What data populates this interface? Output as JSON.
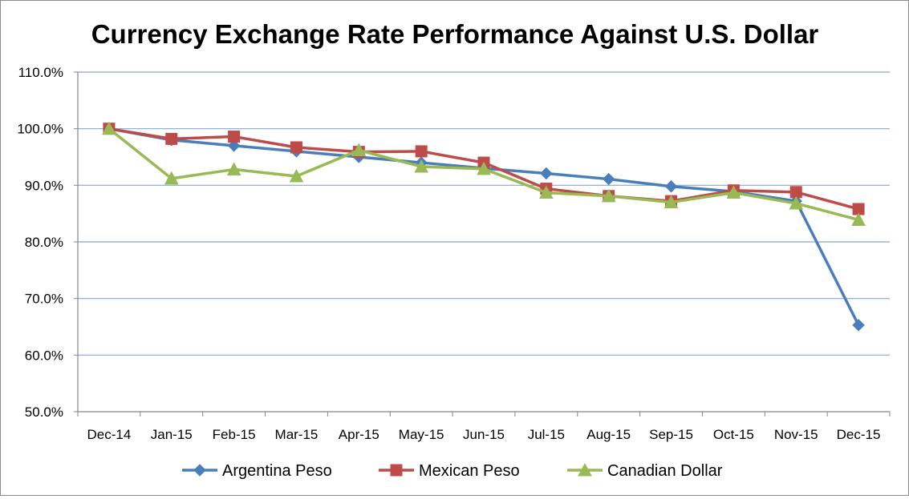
{
  "chart_data": {
    "type": "line",
    "title": "Currency Exchange Rate Performance Against U.S. Dollar",
    "xlabel": "",
    "ylabel": "",
    "categories": [
      "Dec-14",
      "Jan-15",
      "Feb-15",
      "Mar-15",
      "Apr-15",
      "May-15",
      "Jun-15",
      "Jul-15",
      "Aug-15",
      "Sep-15",
      "Oct-15",
      "Nov-15",
      "Dec-15"
    ],
    "ylim": [
      50,
      110
    ],
    "yticks": [
      50,
      60,
      70,
      80,
      90,
      100,
      110
    ],
    "ytick_labels": [
      "50.0%",
      "60.0%",
      "70.0%",
      "80.0%",
      "90.0%",
      "100.0%",
      "110.0%"
    ],
    "grid": true,
    "legend_position": "bottom",
    "series": [
      {
        "name": "Argentina Peso",
        "color": "#4a7ebb",
        "marker": "diamond",
        "values": [
          100.0,
          98.0,
          97.0,
          96.0,
          95.0,
          94.0,
          93.0,
          92.1,
          91.1,
          89.8,
          88.9,
          87.2,
          65.3
        ]
      },
      {
        "name": "Mexican Peso",
        "color": "#be4b48",
        "marker": "square",
        "values": [
          100.0,
          98.2,
          98.6,
          96.7,
          95.9,
          96.0,
          94.0,
          89.4,
          88.1,
          87.2,
          89.1,
          88.8,
          85.8
        ]
      },
      {
        "name": "Canadian Dollar",
        "color": "#98b954",
        "marker": "triangle",
        "values": [
          100.0,
          91.2,
          92.8,
          91.6,
          96.2,
          93.3,
          92.9,
          88.7,
          88.1,
          87.0,
          88.7,
          86.8,
          83.9
        ]
      }
    ]
  }
}
